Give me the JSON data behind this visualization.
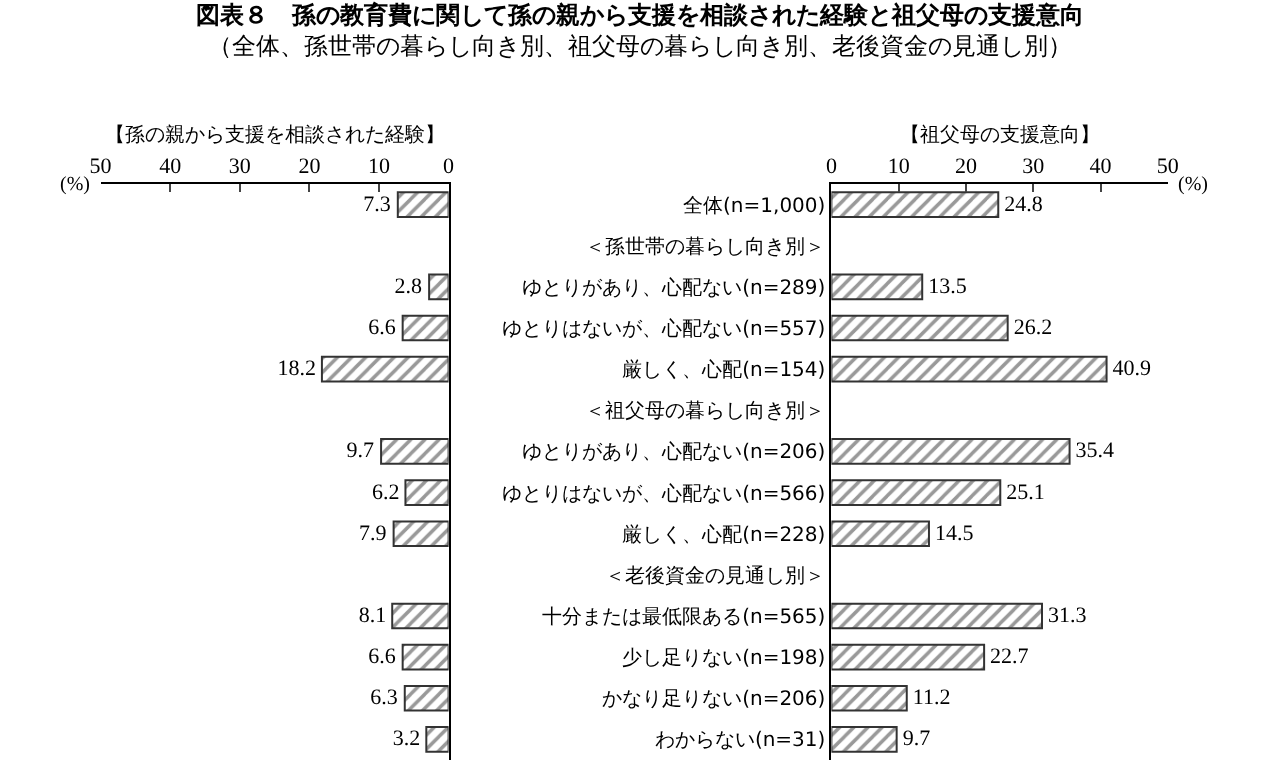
{
  "chart_data": [
    {
      "type": "bar",
      "orientation": "horizontal",
      "title": "図表８　孫の教育費に関して孫の親から支援を相談された経験と祖父母の支援意向",
      "subtitle": "（全体、孫世帯の暮らし向き別、祖父母の暮らし向き別、老後資金の見通し別）",
      "xlabel": "【孫の親から支援を相談された経験】",
      "annotations": [
        "(%)"
      ],
      "values": [
        7.3,
        null,
        2.8,
        6.6,
        18.2,
        null,
        9.7,
        6.2,
        7.9,
        null,
        8.1,
        6.6,
        6.3,
        3.2
      ],
      "color": "#333333",
      "xlim": [
        50,
        0
      ],
      "xticks": [
        50,
        40,
        30,
        20,
        10,
        0
      ],
      "data_labels": true,
      "tick_labels": "x"
    },
    {
      "type": "bar",
      "orientation": "horizontal",
      "xlabel": "【祖父母の支援意向】",
      "annotations": [
        "(%)"
      ],
      "categories": [
        "全体(n=1,000)",
        "＜孫世帯の暮らし向き別＞",
        "ゆとりがあり、心配ない(n=289)",
        "ゆとりはないが、心配ない(n=557)",
        "厳しく、心配(n=154)",
        "＜祖父母の暮らし向き別＞",
        "ゆとりがあり、心配ない(n=206)",
        "ゆとりはないが、心配ない(n=566)",
        "厳しく、心配(n=228)",
        "＜老後資金の見通し別＞",
        "十分または最低限ある(n=565)",
        "少し足りない(n=198)",
        "かなり足りない(n=206)",
        "わからない(n=31)"
      ],
      "values": [
        24.8,
        null,
        13.5,
        26.2,
        40.9,
        null,
        35.4,
        25.1,
        14.5,
        null,
        31.3,
        22.7,
        11.2,
        9.7
      ],
      "color": "#333333",
      "xlim": [
        0,
        50
      ],
      "xticks": [
        0,
        10,
        20,
        30,
        40,
        50
      ],
      "data_labels": true
    }
  ]
}
